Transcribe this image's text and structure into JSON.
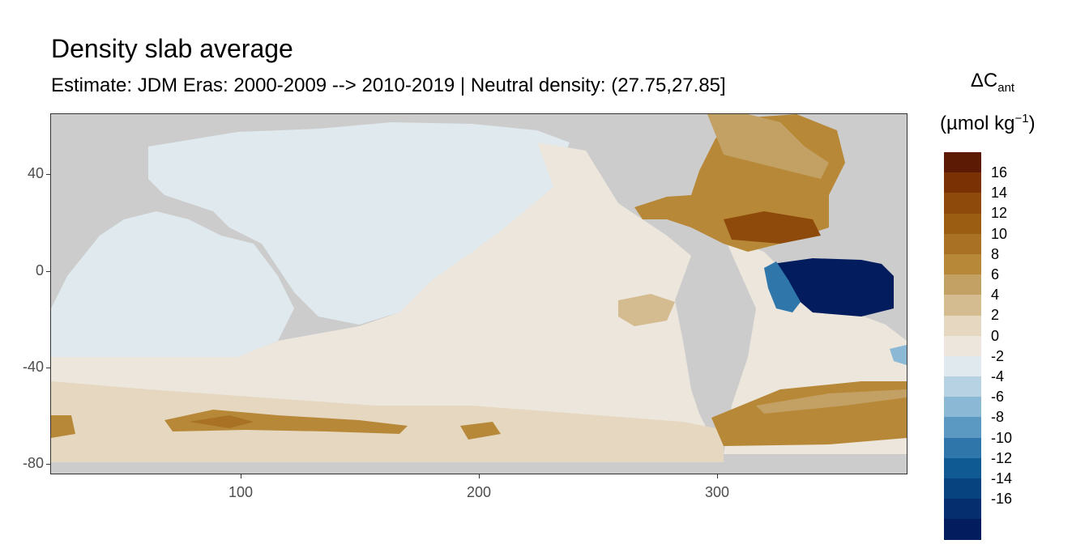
{
  "title": "Density slab average",
  "subtitle": "Estimate: JDM Eras: 2000-2009 --> 2010-2019 | Neutral density: (27.75,27.85]",
  "map": {
    "type": "heatmap",
    "x_range": [
      20,
      380
    ],
    "y_range": [
      -85,
      65
    ],
    "x_ticks": [
      "100",
      "200",
      "300"
    ],
    "y_ticks": [
      "40",
      "0",
      "-40",
      "-80"
    ],
    "land_color": "#cccccc",
    "missing_ocean_color": "#ffffff"
  },
  "legend": {
    "title_main": "ΔC",
    "title_sub": "ant",
    "unit_pre": "(µmol kg",
    "unit_sup": "−1",
    "unit_post": ")",
    "labels": [
      "16",
      "14",
      "12",
      "10",
      "8",
      "6",
      "4",
      "2",
      "0",
      "-2",
      "-4",
      "-6",
      "-8",
      "-10",
      "-12",
      "-14",
      "-16"
    ],
    "colors": [
      "#5c1a04",
      "#7a3205",
      "#8e4a0b",
      "#9a5d12",
      "#a87124",
      "#b78838",
      "#c3a064",
      "#d4bb90",
      "#e6d8c0",
      "#ece6dc",
      "#dfe9ee",
      "#b6d2e3",
      "#8bb8d4",
      "#5b98c2",
      "#2f76ab",
      "#0f5a93",
      "#06437f",
      "#052e6e",
      "#021c5e"
    ]
  }
}
